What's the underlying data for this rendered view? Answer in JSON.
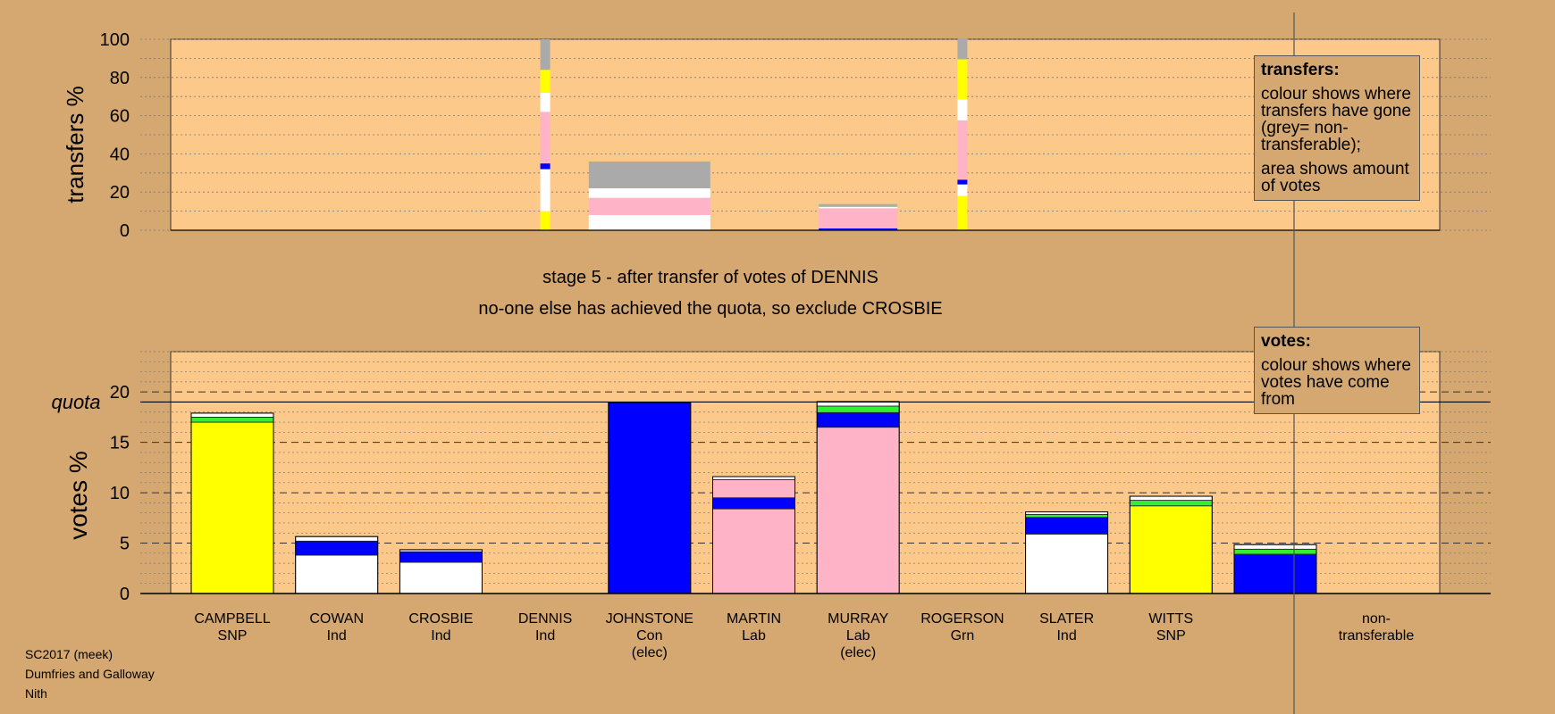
{
  "chart_data": {
    "title": "stage 5 - after transfer of votes of DENNIS",
    "subtitle": "no-one else has achieved the quota, so exclude CROSBIE",
    "colors": {
      "plot_bg": "#fdc98b",
      "page_bg": "#d5a872",
      "yellow": "#ffff00",
      "white": "#ffffff",
      "blue": "#0000ff",
      "pink": "#ffb3c6",
      "green": "#33ee33",
      "grey": "#aaaaaa"
    },
    "transfers": {
      "type": "bar",
      "ylabel": "transfers %",
      "ylim": [
        0,
        100
      ],
      "yticks": [
        0,
        20,
        40,
        60,
        80,
        100
      ],
      "legend": {
        "title": "transfers:",
        "lines": [
          "colour shows where transfers have gone (grey= non-transferable);",
          "area shows amount of votes"
        ]
      },
      "bars": [
        {
          "category": "DENNIS",
          "segments": [
            {
              "color": "yellow",
              "value": 10
            },
            {
              "color": "white",
              "value": 22
            },
            {
              "color": "blue",
              "value": 3
            },
            {
              "color": "pink",
              "value": 27
            },
            {
              "color": "white",
              "value": 10
            },
            {
              "color": "yellow",
              "value": 12
            },
            {
              "color": "grey",
              "value": 16
            }
          ]
        },
        {
          "category": "JOHNSTONE",
          "segments": [
            {
              "color": "white",
              "value": 8
            },
            {
              "color": "pink",
              "value": 9
            },
            {
              "color": "white",
              "value": 5
            },
            {
              "color": "grey",
              "value": 14
            }
          ]
        },
        {
          "category": "MURRAY",
          "segments": [
            {
              "color": "blue",
              "value": 1
            },
            {
              "color": "pink",
              "value": 10.5
            },
            {
              "color": "white",
              "value": 0.8
            },
            {
              "color": "green",
              "value": 0.4
            },
            {
              "color": "grey",
              "value": 1
            }
          ]
        },
        {
          "category": "ROGERSON",
          "segments": [
            {
              "color": "yellow",
              "value": 18
            },
            {
              "color": "white",
              "value": 6
            },
            {
              "color": "blue",
              "value": 2.5
            },
            {
              "color": "pink",
              "value": 31
            },
            {
              "color": "white",
              "value": 11
            },
            {
              "color": "yellow",
              "value": 21
            },
            {
              "color": "grey",
              "value": 11
            }
          ]
        }
      ]
    },
    "votes": {
      "type": "bar",
      "ylabel": "votes %",
      "ylim": [
        0,
        24
      ],
      "yticks": [
        0,
        5,
        10,
        15,
        20
      ],
      "quota": 19,
      "quota_label": "quota",
      "legend": {
        "title": "votes:",
        "lines": [
          "colour shows where votes have come from"
        ]
      },
      "categories": [
        {
          "name": "CAMPBELL",
          "party": "SNP",
          "note": ""
        },
        {
          "name": "COWAN",
          "party": "Ind",
          "note": ""
        },
        {
          "name": "CROSBIE",
          "party": "Ind",
          "note": ""
        },
        {
          "name": "DENNIS",
          "party": "Ind",
          "note": ""
        },
        {
          "name": "JOHNSTONE",
          "party": "Con",
          "note": "(elec)"
        },
        {
          "name": "MARTIN",
          "party": "Lab",
          "note": ""
        },
        {
          "name": "MURRAY",
          "party": "Lab",
          "note": "(elec)"
        },
        {
          "name": "ROGERSON",
          "party": "Grn",
          "note": ""
        },
        {
          "name": "SLATER",
          "party": "Ind",
          "note": ""
        },
        {
          "name": "WITTS",
          "party": "SNP",
          "note": ""
        },
        {
          "name": "non-",
          "party": "transferable",
          "note": ""
        }
      ],
      "bars": [
        [
          {
            "color": "yellow",
            "value": 17
          },
          {
            "color": "green",
            "value": 0.5
          },
          {
            "color": "white",
            "value": 0.4
          }
        ],
        [
          {
            "color": "white",
            "value": 3.8
          },
          {
            "color": "blue",
            "value": 1.4
          },
          {
            "color": "white",
            "value": 0.45
          }
        ],
        [
          {
            "color": "white",
            "value": 3.1
          },
          {
            "color": "blue",
            "value": 1.05
          },
          {
            "color": "white",
            "value": 0.2
          }
        ],
        [],
        [
          {
            "color": "blue",
            "value": 18.9
          }
        ],
        [
          {
            "color": "pink",
            "value": 8.4
          },
          {
            "color": "blue",
            "value": 1.1
          },
          {
            "color": "pink",
            "value": 1.8
          },
          {
            "color": "white",
            "value": 0.3
          }
        ],
        [
          {
            "color": "pink",
            "value": 16.5
          },
          {
            "color": "blue",
            "value": 1.45
          },
          {
            "color": "green",
            "value": 0.65
          },
          {
            "color": "white",
            "value": 0.45
          }
        ],
        [],
        [
          {
            "color": "white",
            "value": 5.9
          },
          {
            "color": "blue",
            "value": 1.65
          },
          {
            "color": "green",
            "value": 0.3
          },
          {
            "color": "white",
            "value": 0.25
          }
        ],
        [
          {
            "color": "yellow",
            "value": 8.7
          },
          {
            "color": "green",
            "value": 0.55
          },
          {
            "color": "white",
            "value": 0.4
          }
        ],
        [
          {
            "color": "blue",
            "value": 3.9
          },
          {
            "color": "green",
            "value": 0.5
          },
          {
            "color": "white",
            "value": 0.45
          }
        ]
      ]
    }
  },
  "footer": {
    "line1": "SC2017 (meek)",
    "line2": "Dumfries and Galloway",
    "line3": "Nith"
  }
}
